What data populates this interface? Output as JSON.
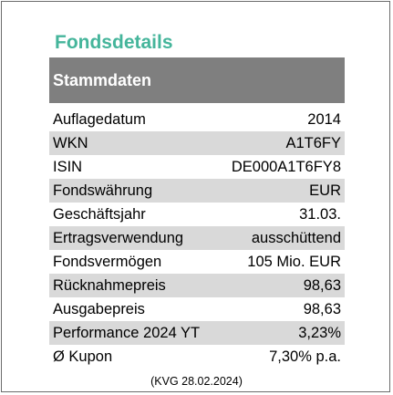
{
  "title": "Fondsdetails",
  "section_header": "Stammdaten",
  "rows": [
    {
      "label": "Auflagedatum",
      "value": "2014"
    },
    {
      "label": "WKN",
      "value": "A1T6FY"
    },
    {
      "label": "ISIN",
      "value": "DE000A1T6FY8"
    },
    {
      "label": "Fondswährung",
      "value": "EUR"
    },
    {
      "label": "Geschäftsjahr",
      "value": "31.03."
    },
    {
      "label": "Ertragsverwendung",
      "value": "ausschüttend"
    },
    {
      "label": "Fondsvermögen",
      "value": "105 Mio. EUR"
    },
    {
      "label": "Rücknahmepreis",
      "value": "98,63"
    },
    {
      "label": "Ausgabepreis",
      "value": "98,63"
    },
    {
      "label": "Performance 2024 YT",
      "value": "3,23%"
    },
    {
      "label": "Ø Kupon",
      "value": "7,30% p.a."
    }
  ],
  "footnote": "(KVG 28.02.2024)",
  "colors": {
    "title": "#45b59b",
    "header_bg": "#7f7f7f",
    "row_shade": "#d9d9d9",
    "border": "#6b6b6b"
  }
}
